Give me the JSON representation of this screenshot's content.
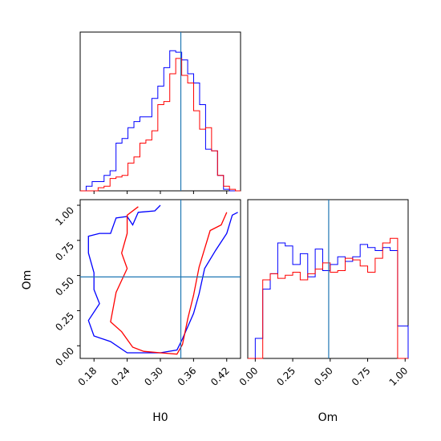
{
  "chart_data": [
    {
      "panel": "H0 marginal",
      "type": "histogram",
      "x_range": [
        0.155,
        0.445
      ],
      "bin_edges": [
        0.155,
        0.1658,
        0.1766,
        0.1874,
        0.1982,
        0.209,
        0.2198,
        0.2306,
        0.2414,
        0.2522,
        0.263,
        0.2738,
        0.2846,
        0.2954,
        0.3062,
        0.317,
        0.3278,
        0.3386,
        0.3494,
        0.3602,
        0.371,
        0.3818,
        0.3926,
        0.4034,
        0.4142,
        0.425,
        0.4358,
        0.445
      ],
      "series": [
        {
          "color": "#0000ff",
          "counts": [
            0.0,
            0.03,
            0.06,
            0.06,
            0.1,
            0.13,
            0.31,
            0.34,
            0.41,
            0.45,
            0.48,
            0.48,
            0.6,
            0.68,
            0.8,
            0.91,
            0.9,
            0.85,
            0.76,
            0.7,
            0.56,
            0.27,
            0.26,
            0.1,
            0.01,
            0.0,
            0.0
          ]
        },
        {
          "color": "#ff0000",
          "counts": [
            0.0,
            0.0,
            0.0,
            0.02,
            0.03,
            0.08,
            0.09,
            0.1,
            0.18,
            0.22,
            0.31,
            0.33,
            0.39,
            0.56,
            0.58,
            0.76,
            0.86,
            0.75,
            0.7,
            0.52,
            0.4,
            0.41,
            0.26,
            0.1,
            0.03,
            0.01,
            0.0
          ]
        }
      ],
      "truth_line": 0.337
    },
    {
      "panel": "Om marginal",
      "type": "histogram",
      "x_range": [
        -0.05,
        1.02
      ],
      "bin_edges": [
        -0.05,
        0.0,
        0.05,
        0.1,
        0.15,
        0.2,
        0.25,
        0.3,
        0.35,
        0.4,
        0.45,
        0.5,
        0.55,
        0.6,
        0.65,
        0.7,
        0.75,
        0.8,
        0.85,
        0.9,
        0.95,
        1.0,
        1.02
      ],
      "series": [
        {
          "color": "#0000ff",
          "counts": [
            0.0,
            0.13,
            0.45,
            0.55,
            0.75,
            0.73,
            0.61,
            0.68,
            0.53,
            0.71,
            0.57,
            0.61,
            0.66,
            0.63,
            0.66,
            0.74,
            0.72,
            0.7,
            0.72,
            0.7,
            0.21,
            0.21
          ]
        },
        {
          "color": "#ff0000",
          "counts": [
            0.0,
            0.0,
            0.51,
            0.55,
            0.52,
            0.54,
            0.56,
            0.51,
            0.55,
            0.58,
            0.62,
            0.56,
            0.57,
            0.65,
            0.64,
            0.6,
            0.56,
            0.65,
            0.75,
            0.78,
            0.0,
            0.0
          ]
        }
      ],
      "truth_line": 0.49
    },
    {
      "panel": "joint H0 vs Om",
      "type": "contour",
      "x_range": [
        0.155,
        0.445
      ],
      "y_range": [
        -0.09,
        1.04
      ],
      "contours": [
        {
          "color": "#0000ff",
          "level": "outer",
          "points": [
            [
              0.3,
              1.0
            ],
            [
              0.29,
              0.96
            ],
            [
              0.26,
              0.95
            ],
            [
              0.25,
              0.86
            ],
            [
              0.24,
              0.92
            ],
            [
              0.22,
              0.91
            ],
            [
              0.21,
              0.8
            ],
            [
              0.19,
              0.8
            ],
            [
              0.17,
              0.78
            ],
            [
              0.17,
              0.66
            ],
            [
              0.18,
              0.52
            ],
            [
              0.18,
              0.4
            ],
            [
              0.19,
              0.3
            ],
            [
              0.17,
              0.18
            ],
            [
              0.18,
              0.07
            ],
            [
              0.21,
              0.03
            ],
            [
              0.24,
              -0.05
            ],
            [
              0.3,
              -0.05
            ],
            [
              0.33,
              -0.03
            ],
            [
              0.34,
              0.05
            ],
            [
              0.36,
              0.23
            ],
            [
              0.37,
              0.37
            ],
            [
              0.38,
              0.55
            ],
            [
              0.4,
              0.68
            ],
            [
              0.42,
              0.8
            ],
            [
              0.43,
              0.93
            ],
            [
              0.44,
              0.95
            ]
          ]
        },
        {
          "color": "#ff0000",
          "level": "inner",
          "points": [
            [
              0.26,
              0.99
            ],
            [
              0.24,
              0.93
            ],
            [
              0.24,
              0.8
            ],
            [
              0.23,
              0.66
            ],
            [
              0.24,
              0.55
            ],
            [
              0.22,
              0.38
            ],
            [
              0.21,
              0.17
            ],
            [
              0.23,
              0.1
            ],
            [
              0.25,
              -0.01
            ],
            [
              0.27,
              -0.04
            ],
            [
              0.3,
              -0.05
            ],
            [
              0.33,
              -0.06
            ],
            [
              0.34,
              0.01
            ],
            [
              0.35,
              0.2
            ],
            [
              0.36,
              0.36
            ],
            [
              0.37,
              0.56
            ],
            [
              0.38,
              0.69
            ],
            [
              0.39,
              0.82
            ],
            [
              0.41,
              0.86
            ],
            [
              0.42,
              0.95
            ]
          ]
        }
      ],
      "truth_lines": {
        "x": 0.337,
        "y": 0.49
      }
    }
  ],
  "axes": {
    "h0_label": "H0",
    "om_label": "Om",
    "h0_ticks": [
      "0.18",
      "0.24",
      "0.30",
      "0.36",
      "0.42"
    ],
    "om_y_ticks": [
      "1.00",
      "0.75",
      "0.50",
      "0.25",
      "0.00"
    ],
    "om_x_ticks": [
      "0.00",
      "0.25",
      "0.50",
      "0.75",
      "1.00"
    ]
  },
  "colors": {
    "series_a": "#0000ff",
    "series_b": "#ff0000",
    "truth": "#1f77b4"
  }
}
